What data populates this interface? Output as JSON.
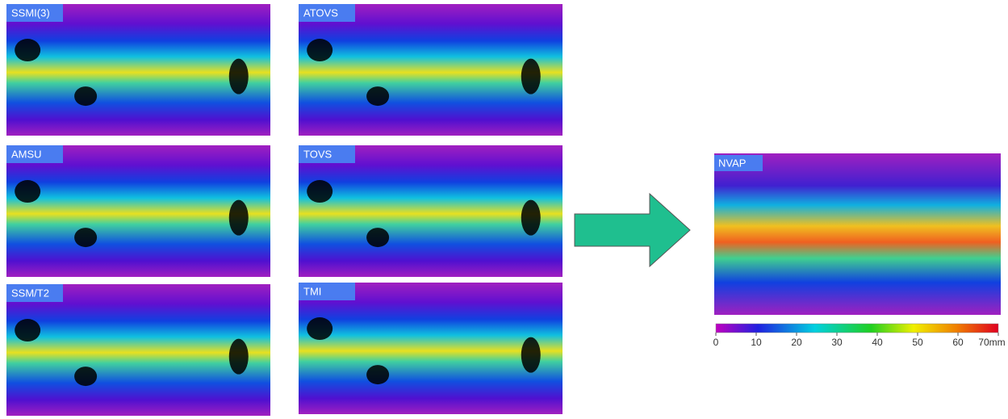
{
  "panels": [
    {
      "label": "SSMI(3)"
    },
    {
      "label": "AMSU"
    },
    {
      "label": "SSM/T2"
    },
    {
      "label": "ATOVS"
    },
    {
      "label": "TOVS"
    },
    {
      "label": "TMI"
    }
  ],
  "result": {
    "label": "NVAP"
  },
  "colorbar": {
    "min": 0,
    "max": 70,
    "ticks": [
      0,
      10,
      20,
      30,
      40,
      50,
      60,
      {
        "value": 70,
        "label": "70mm"
      }
    ]
  }
}
